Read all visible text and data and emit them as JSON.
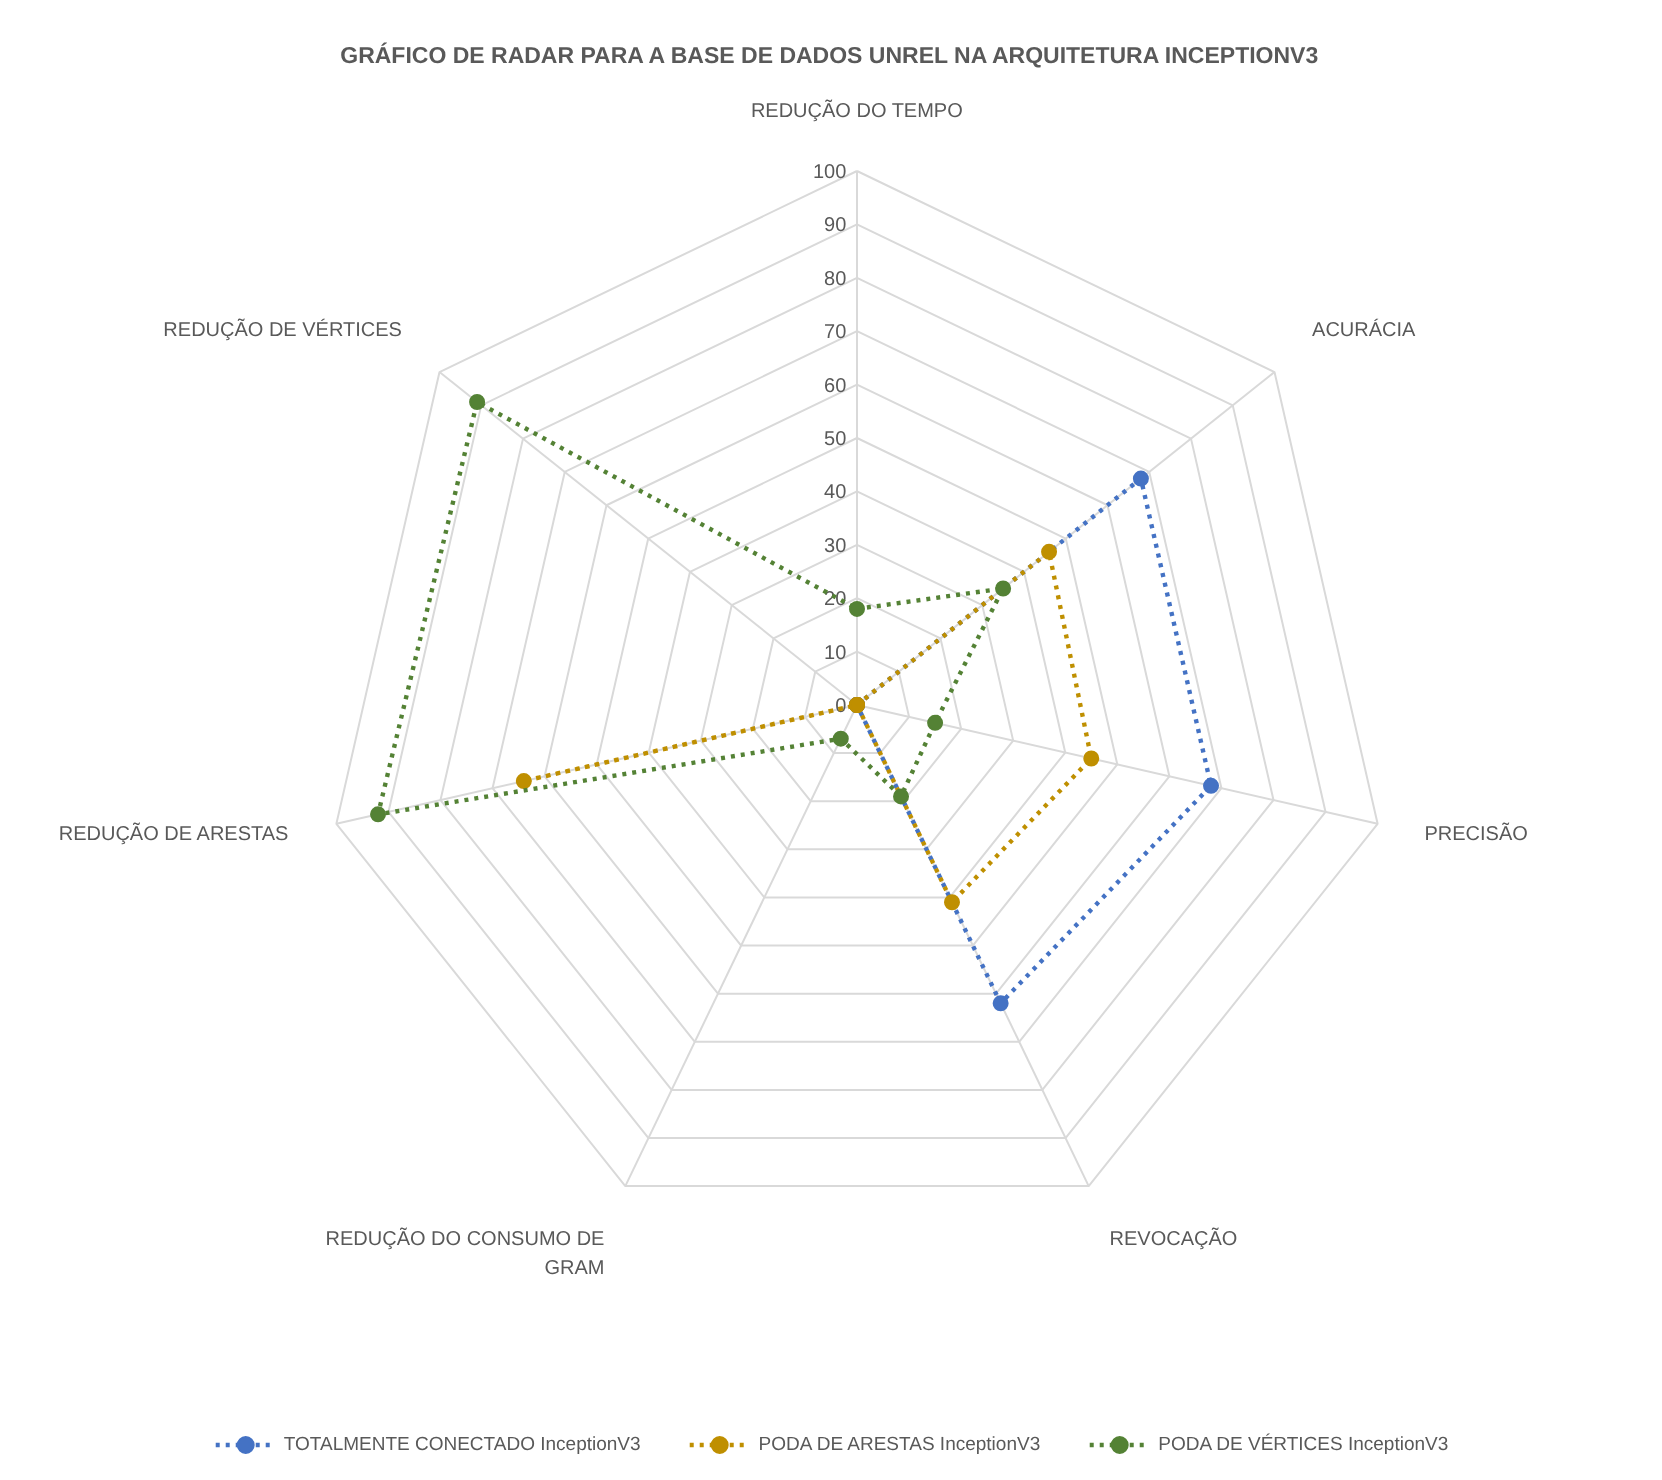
{
  "chart_data": {
    "type": "radar",
    "title": "GRÁFICO DE RADAR PARA A BASE DE DADOS UNREL NA ARQUITETURA INCEPTIONV3",
    "categories": [
      "REDUÇÃO DO TEMPO",
      "ACURÁCIA",
      "PRECISÃO",
      "REVOCAÇÃO",
      "REDUÇÃO DO CONSUMO DE GRAM",
      "REDUÇÃO DE ARESTAS",
      "REDUÇÃO DE VÉRTICES"
    ],
    "ylim": [
      0,
      100
    ],
    "yticks": [
      0,
      10,
      20,
      30,
      40,
      50,
      60,
      70,
      80,
      90,
      100
    ],
    "grid": true,
    "legend": "bottom",
    "marker": "circle",
    "line_style": "dotted",
    "series": [
      {
        "name": "TOTALMENTE CONECTADO InceptionV3",
        "color": "#4472c4",
        "values": [
          0,
          68,
          68,
          62,
          0,
          0,
          0
        ]
      },
      {
        "name": "PODA DE ARESTAS InceptionV3",
        "color": "#bf8f00",
        "values": [
          0,
          46,
          45,
          41,
          0,
          64,
          0
        ]
      },
      {
        "name": "PODA DE VÉRTICES InceptionV3",
        "color": "#548235",
        "values": [
          18,
          35,
          15,
          19,
          7,
          92,
          91
        ]
      }
    ]
  }
}
